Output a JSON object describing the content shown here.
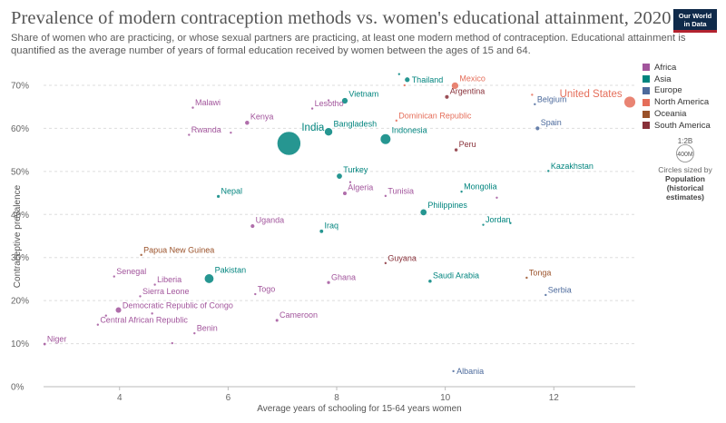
{
  "header": {
    "title": "Prevalence of modern contraception methods vs. women's educational attainment, 2020",
    "subtitle": "Share of women who are practicing, or whose sexual partners are practicing, at least one modern method of contraception. Educational attainment is quantified as the average number of years of formal education received by women between the ages of 15 and 64.",
    "logo_line1": "Our World",
    "logo_line2": "in Data"
  },
  "size_legend": {
    "ratio": "1:2B",
    "circle_label": "400M",
    "caption": "Circles sized by",
    "variable": "Population (historical estimates)"
  },
  "colors": {
    "Africa": "#a2559c",
    "Asia": "#00847e",
    "Europe": "#4c6a9c",
    "North America": "#e56e5a",
    "Oceania": "#9a5129",
    "South America": "#883039"
  },
  "chart_data": {
    "type": "scatter",
    "xlabel": "Average years of schooling for 15-64 years women",
    "ylabel": "Contraceptive prevalence",
    "xlim": [
      2.6,
      13.5
    ],
    "ylim": [
      0,
      74
    ],
    "xticks": [
      4,
      6,
      8,
      10,
      12
    ],
    "yticks": [
      0,
      10,
      20,
      30,
      40,
      50,
      60,
      70
    ],
    "y_unit": "%",
    "grid": "horizontal dashed",
    "legend_position": "right",
    "legend": [
      "Africa",
      "Asia",
      "Europe",
      "North America",
      "Oceania",
      "South America"
    ],
    "points": [
      {
        "name": "India",
        "region": "Asia",
        "x": 7.12,
        "y": 56.5,
        "pop": 1396,
        "label": "India",
        "label_pos": "above-right"
      },
      {
        "name": "United States",
        "region": "North America",
        "x": 13.4,
        "y": 66.1,
        "pop": 331,
        "label": "United States",
        "label_pos": "above-left"
      },
      {
        "name": "Indonesia",
        "region": "Asia",
        "x": 8.9,
        "y": 57.5,
        "pop": 273,
        "label": "Indonesia",
        "label_pos": "above-right"
      },
      {
        "name": "Bangladesh",
        "region": "Asia",
        "x": 7.85,
        "y": 59.2,
        "pop": 165,
        "label": "Bangladesh",
        "label_pos": "above-right"
      },
      {
        "name": "Mexico",
        "region": "North America",
        "x": 10.18,
        "y": 69.9,
        "pop": 129,
        "label": "Mexico",
        "label_pos": "above-right"
      },
      {
        "name": "Pakistan",
        "region": "Asia",
        "x": 5.65,
        "y": 25.1,
        "pop": 221,
        "label": "Pakistan",
        "label_pos": "above-right"
      },
      {
        "name": "Philippines",
        "region": "Asia",
        "x": 9.6,
        "y": 40.5,
        "pop": 110,
        "label": "Philippines",
        "label_pos": "above-right"
      },
      {
        "name": "Vietnam",
        "region": "Asia",
        "x": 8.15,
        "y": 66.4,
        "pop": 97,
        "label": "Vietnam",
        "label_pos": "above-right"
      },
      {
        "name": "Democratic Republic of Congo",
        "region": "Africa",
        "x": 3.98,
        "y": 17.8,
        "pop": 90,
        "label": "Democratic Republic of Congo",
        "label_pos": "right-up"
      },
      {
        "name": "Kenya",
        "region": "Africa",
        "x": 6.35,
        "y": 61.3,
        "pop": 54,
        "label": "Kenya",
        "label_pos": "above-right"
      },
      {
        "name": "Turkey",
        "region": "Asia",
        "x": 8.05,
        "y": 48.9,
        "pop": 84,
        "label": "Turkey",
        "label_pos": "above-right"
      },
      {
        "name": "Uganda",
        "region": "Africa",
        "x": 6.45,
        "y": 37.3,
        "pop": 46,
        "label": "Uganda",
        "label_pos": "above-right"
      },
      {
        "name": "Thailand",
        "region": "Asia",
        "x": 9.3,
        "y": 71.3,
        "pop": 70,
        "label": "Thailand",
        "label_pos": "right"
      },
      {
        "name": "Argentina",
        "region": "South America",
        "x": 10.03,
        "y": 67.3,
        "pop": 45,
        "label": "Argentina",
        "label_pos": "above-right"
      },
      {
        "name": "Peru",
        "region": "South America",
        "x": 10.2,
        "y": 55.0,
        "pop": 33,
        "label": "Peru",
        "label_pos": "above-right"
      },
      {
        "name": "Algeria",
        "region": "Africa",
        "x": 8.15,
        "y": 44.9,
        "pop": 44,
        "label": "Algeria",
        "label_pos": "above-right"
      },
      {
        "name": "Nepal",
        "region": "Asia",
        "x": 5.82,
        "y": 44.2,
        "pop": 29,
        "label": "Nepal",
        "label_pos": "above-right"
      },
      {
        "name": "Iraq",
        "region": "Asia",
        "x": 7.72,
        "y": 36.1,
        "pop": 41,
        "label": "Iraq",
        "label_pos": "above-right"
      },
      {
        "name": "Ghana",
        "region": "Africa",
        "x": 7.85,
        "y": 24.2,
        "pop": 31,
        "label": "Ghana",
        "label_pos": "above-right"
      },
      {
        "name": "Cameroon",
        "region": "Africa",
        "x": 6.9,
        "y": 15.4,
        "pop": 27,
        "label": "Cameroon",
        "label_pos": "above-right"
      },
      {
        "name": "Saudi Arabia",
        "region": "Asia",
        "x": 9.72,
        "y": 24.5,
        "pop": 35,
        "label": "Saudi Arabia",
        "label_pos": "above-right"
      },
      {
        "name": "Kazakhstan",
        "region": "Asia",
        "x": 11.9,
        "y": 50.1,
        "pop": 19,
        "label": "Kazakhstan",
        "label_pos": "above-right"
      },
      {
        "name": "Spain",
        "region": "Europe",
        "x": 11.7,
        "y": 60.0,
        "pop": 47,
        "label": "Spain",
        "label_pos": "above-right"
      },
      {
        "name": "Belgium",
        "region": "Europe",
        "x": 11.65,
        "y": 65.6,
        "pop": 12,
        "label": "Belgium",
        "label_pos": "above-right"
      },
      {
        "name": "Serbia",
        "region": "Europe",
        "x": 11.85,
        "y": 21.3,
        "pop": 7,
        "label": "Serbia",
        "label_pos": "above-right"
      },
      {
        "name": "Albania",
        "region": "Europe",
        "x": 10.15,
        "y": 3.6,
        "pop": 3,
        "label": "Albania",
        "label_pos": "right"
      },
      {
        "name": "Tonga",
        "region": "Oceania",
        "x": 11.5,
        "y": 25.3,
        "pop": 0.1,
        "label": "Tonga",
        "label_pos": "above-right"
      },
      {
        "name": "Papua New Guinea",
        "region": "Oceania",
        "x": 4.4,
        "y": 30.6,
        "pop": 9,
        "label": "Papua New Guinea",
        "label_pos": "above-right"
      },
      {
        "name": "Guyana",
        "region": "South America",
        "x": 8.9,
        "y": 28.7,
        "pop": 0.8,
        "label": "Guyana",
        "label_pos": "above-right"
      },
      {
        "name": "Mongolia",
        "region": "Asia",
        "x": 10.3,
        "y": 45.3,
        "pop": 3.3,
        "label": "Mongolia",
        "label_pos": "above-right"
      },
      {
        "name": "Jordan",
        "region": "Asia",
        "x": 10.7,
        "y": 37.6,
        "pop": 10,
        "label": "Jordan",
        "label_pos": "above-right"
      },
      {
        "name": "Dominican Republic",
        "region": "North America",
        "x": 9.1,
        "y": 61.8,
        "pop": 11,
        "label": "Dominican Republic",
        "label_pos": "above-right"
      },
      {
        "name": "Tunisia",
        "region": "Africa",
        "x": 8.9,
        "y": 44.3,
        "pop": 12,
        "label": "Tunisia",
        "label_pos": "above-right"
      },
      {
        "name": "Lesotho",
        "region": "Africa",
        "x": 7.55,
        "y": 64.6,
        "pop": 2,
        "label": "Lesotho",
        "label_pos": "above-right"
      },
      {
        "name": "Malawi",
        "region": "Africa",
        "x": 5.35,
        "y": 64.8,
        "pop": 19,
        "label": "Malawi",
        "label_pos": "above-right"
      },
      {
        "name": "Rwanda",
        "region": "Africa",
        "x": 5.28,
        "y": 58.5,
        "pop": 13,
        "label": "Rwanda",
        "label_pos": "above-right"
      },
      {
        "name": "Senegal",
        "region": "Africa",
        "x": 3.9,
        "y": 25.6,
        "pop": 17,
        "label": "Senegal",
        "label_pos": "above-right"
      },
      {
        "name": "Liberia",
        "region": "Africa",
        "x": 4.65,
        "y": 23.7,
        "pop": 5,
        "label": "Liberia",
        "label_pos": "above-right"
      },
      {
        "name": "Sierra Leone",
        "region": "Africa",
        "x": 4.38,
        "y": 21.0,
        "pop": 8,
        "label": "Sierra Leone",
        "label_pos": "above-right"
      },
      {
        "name": "Togo",
        "region": "Africa",
        "x": 6.5,
        "y": 21.5,
        "pop": 8,
        "label": "Togo",
        "label_pos": "above-right"
      },
      {
        "name": "Central African Republic",
        "region": "Africa",
        "x": 3.6,
        "y": 14.4,
        "pop": 5,
        "label": "Central African Republic",
        "label_pos": "right-up"
      },
      {
        "name": "Benin",
        "region": "Africa",
        "x": 5.38,
        "y": 12.4,
        "pop": 12,
        "label": "Benin",
        "label_pos": "above-right"
      },
      {
        "name": "Niger",
        "region": "Africa",
        "x": 2.62,
        "y": 9.9,
        "pop": 24,
        "label": "Niger",
        "label_pos": "above-right"
      },
      {
        "name": "",
        "region": "Africa",
        "x": 3.75,
        "y": 16.5,
        "pop": 3,
        "label": "",
        "label_pos": "none"
      },
      {
        "name": "",
        "region": "Africa",
        "x": 4.6,
        "y": 17.0,
        "pop": 3,
        "label": "",
        "label_pos": "none"
      },
      {
        "name": "",
        "region": "Africa",
        "x": 4.97,
        "y": 10.1,
        "pop": 3,
        "label": "",
        "label_pos": "none"
      },
      {
        "name": "",
        "region": "Africa",
        "x": 6.05,
        "y": 59.0,
        "pop": 3,
        "label": "",
        "label_pos": "none"
      },
      {
        "name": "",
        "region": "Africa",
        "x": 8.25,
        "y": 47.5,
        "pop": 2,
        "label": "",
        "label_pos": "none"
      },
      {
        "name": "",
        "region": "Africa",
        "x": 7.85,
        "y": 66.5,
        "pop": 2,
        "label": "",
        "label_pos": "none"
      },
      {
        "name": "",
        "region": "Africa",
        "x": 10.95,
        "y": 43.9,
        "pop": 2,
        "label": "",
        "label_pos": "none"
      },
      {
        "name": "",
        "region": "Asia",
        "x": 9.15,
        "y": 72.6,
        "pop": 2,
        "label": "",
        "label_pos": "none"
      },
      {
        "name": "",
        "region": "Asia",
        "x": 11.2,
        "y": 38.0,
        "pop": 2,
        "label": "",
        "label_pos": "none"
      },
      {
        "name": "",
        "region": "North America",
        "x": 9.25,
        "y": 70.0,
        "pop": 2,
        "label": "",
        "label_pos": "none"
      },
      {
        "name": "",
        "region": "North America",
        "x": 11.6,
        "y": 67.8,
        "pop": 2,
        "label": "",
        "label_pos": "none"
      }
    ]
  }
}
